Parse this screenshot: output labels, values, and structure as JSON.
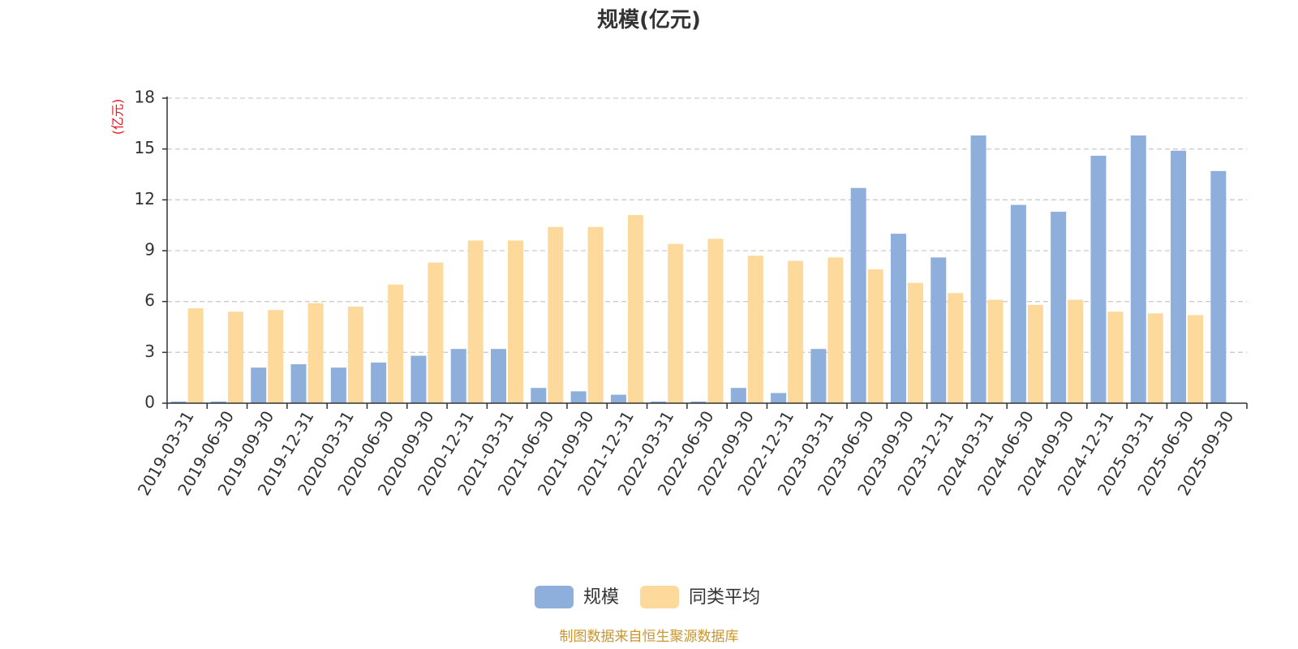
{
  "chart_data": {
    "type": "bar",
    "title": "规模(亿元)",
    "ylabel": "(亿元)",
    "xlabel": "",
    "ylim": [
      0,
      18
    ],
    "yticks": [
      "0",
      "3",
      "6",
      "9",
      "12",
      "15",
      "18"
    ],
    "grid": true,
    "legend_position": "bottom-center",
    "categories": [
      "2019-03-31",
      "2019-06-30",
      "2019-09-30",
      "2019-12-31",
      "2020-03-31",
      "2020-06-30",
      "2020-09-30",
      "2020-12-31",
      "2021-03-31",
      "2021-06-30",
      "2021-09-30",
      "2021-12-31",
      "2022-03-31",
      "2022-06-30",
      "2022-09-30",
      "2022-12-31",
      "2023-03-31",
      "2023-06-30",
      "2023-09-30",
      "2023-12-31",
      "2024-03-31",
      "2024-06-30",
      "2024-09-30",
      "2024-12-31",
      "2025-03-31",
      "2025-06-30",
      "2025-09-30"
    ],
    "series": [
      {
        "name": "规模",
        "color": "#8eaedc",
        "values": [
          0.1,
          0.1,
          2.1,
          2.3,
          2.1,
          2.4,
          2.8,
          3.2,
          3.2,
          0.9,
          0.7,
          0.5,
          0.1,
          0.1,
          0.9,
          0.6,
          3.2,
          12.7,
          10.0,
          8.6,
          15.8,
          11.7,
          11.3,
          14.6,
          15.8,
          14.9,
          13.7
        ]
      },
      {
        "name": "同类平均",
        "color": "#fdd99b",
        "values": [
          5.6,
          5.4,
          5.5,
          5.9,
          5.7,
          7.0,
          8.3,
          9.6,
          9.6,
          10.4,
          10.4,
          11.1,
          9.4,
          9.7,
          8.7,
          8.4,
          8.6,
          7.9,
          7.1,
          6.5,
          6.1,
          5.8,
          6.1,
          5.4,
          5.3,
          5.2,
          null
        ]
      }
    ],
    "source": "制图数据来自恒生聚源数据库",
    "unit_color": "#e8141b",
    "source_color": "#c9962f"
  }
}
